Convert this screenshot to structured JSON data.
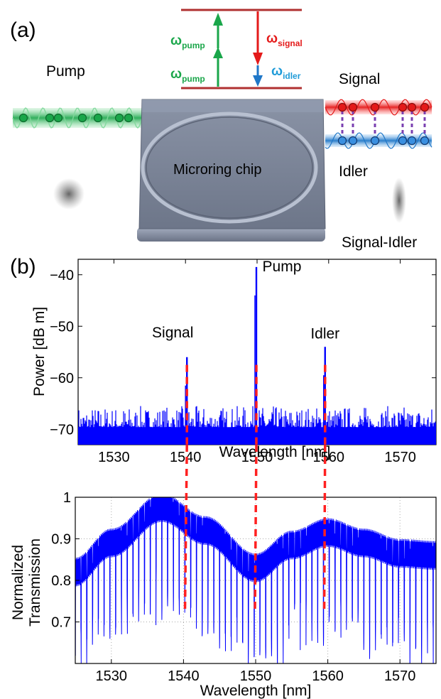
{
  "panel_a": {
    "label": "(a)",
    "energy_levels": {
      "pump_symbol": "ω",
      "pump_sub": "pump",
      "signal_symbol": "ω",
      "signal_sub": "signal",
      "idler_symbol": "ω",
      "idler_sub": "idler"
    },
    "labels": {
      "pump": "Pump",
      "signal": "Signal",
      "idler": "Idler",
      "chip": "Microring chip",
      "signal_idler": "Signal-Idler"
    },
    "colors": {
      "pump": "#1aa64a",
      "signal": "#e41a1a",
      "idler": "#1f77c8",
      "chip": "#7a8496",
      "level": "#b03030"
    }
  },
  "panel_b": {
    "label": "(b)"
  },
  "chart_data": [
    {
      "type": "line",
      "name": "spectrum",
      "xlabel": "Wavelength  [nm]",
      "ylabel": "Power  [dB m]",
      "xlim": [
        1525,
        1575
      ],
      "ylim": [
        -73,
        -37
      ],
      "xticks": [
        "1530",
        "1540",
        "1550",
        "1560",
        "1570"
      ],
      "yticks": [
        "−40",
        "−50",
        "−60",
        "−70"
      ],
      "noise_floor": -70,
      "peaks": [
        {
          "label": "Signal",
          "x": 1540.2,
          "y": -56
        },
        {
          "label": "Pump",
          "x": 1549.9,
          "y": -38.5
        },
        {
          "label": "Idler",
          "x": 1559.5,
          "y": -54
        }
      ],
      "color": "#0000ff"
    },
    {
      "type": "line",
      "name": "transmission",
      "xlabel": "Wavelength [nm]",
      "ylabel_line1": "Normalized",
      "ylabel_line2": "Transmission",
      "xlim": [
        1525,
        1575
      ],
      "ylim": [
        0.6,
        1.0
      ],
      "xticks": [
        "1530",
        "1540",
        "1550",
        "1560",
        "1570"
      ],
      "yticks": [
        "1",
        "0.9",
        "0.8",
        "0.7"
      ],
      "envelope": {
        "x": [
          1525,
          1530,
          1537,
          1543,
          1550,
          1555,
          1560,
          1565,
          1570,
          1575
        ],
        "y": [
          0.82,
          0.89,
          0.975,
          0.92,
          0.83,
          0.885,
          0.915,
          0.89,
          0.865,
          0.86
        ]
      },
      "resonance_spacing_nm": 0.8,
      "grid": true,
      "color": "#0000ff"
    }
  ],
  "marker_lines": {
    "color": "#ff2020",
    "x": [
      1540.2,
      1549.9,
      1559.5
    ]
  }
}
